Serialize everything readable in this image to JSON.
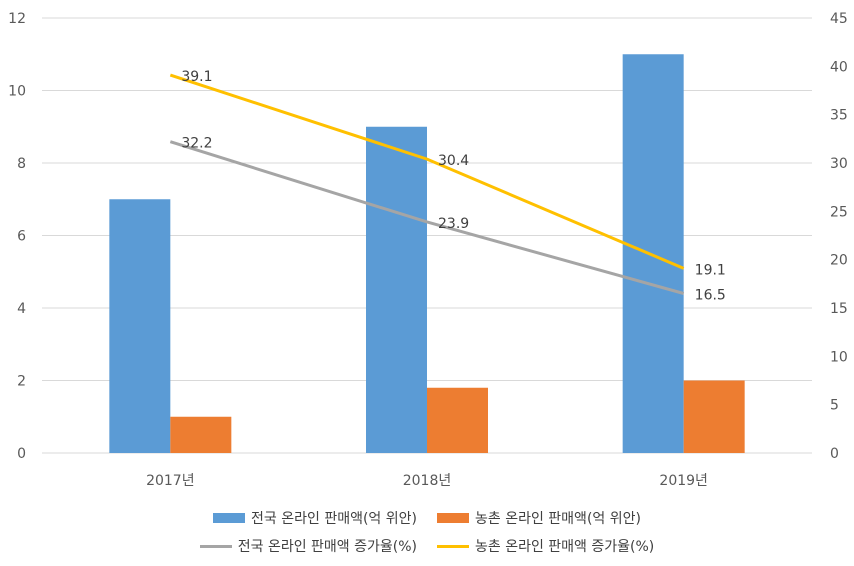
{
  "chart_data": {
    "type": "bar",
    "categories": [
      "2017년",
      "2018년",
      "2019년"
    ],
    "series": [
      {
        "name": "전국 온라인 판매액(억 위안)",
        "kind": "bar",
        "axis": "left",
        "color": "#5B9BD5",
        "values": [
          7,
          9,
          11
        ]
      },
      {
        "name": "농촌 온라인 판매액(억 위안)",
        "kind": "bar",
        "axis": "left",
        "color": "#ED7D31",
        "values": [
          1,
          1.8,
          2
        ]
      },
      {
        "name": "전국 온라인 판매액 증가율(%)",
        "kind": "line",
        "axis": "right",
        "color": "#A5A5A5",
        "values": [
          32.2,
          23.9,
          16.5
        ],
        "labels": [
          "32.2",
          "23.9",
          "16.5"
        ]
      },
      {
        "name": "농촌 온라인 판매액 증가율(%)",
        "kind": "line",
        "axis": "right",
        "color": "#FFC000",
        "values": [
          39.1,
          30.4,
          19.1
        ],
        "labels": [
          "39.1",
          "30.4",
          "19.1"
        ]
      }
    ],
    "ylim": [
      0,
      12
    ],
    "y_ticks": [
      "0",
      "2",
      "4",
      "6",
      "8",
      "10",
      "12"
    ],
    "y2lim": [
      0,
      45
    ],
    "y2_ticks": [
      "0",
      "5",
      "10",
      "15",
      "20",
      "25",
      "30",
      "35",
      "40",
      "45"
    ],
    "grid": true,
    "legend_position": "bottom"
  }
}
